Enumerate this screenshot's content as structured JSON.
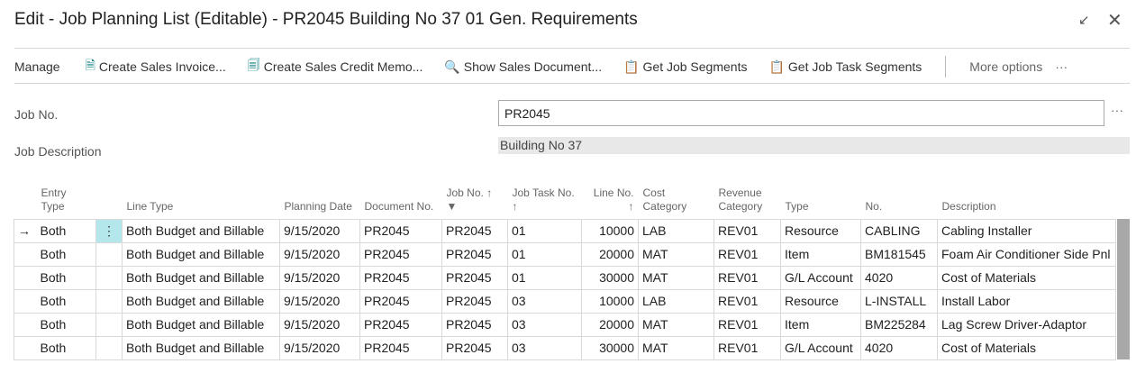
{
  "title": "Edit - Job Planning List (Editable) - PR2045 Building No 37 01 Gen. Requirements",
  "window": {
    "collapse_icon": "↙",
    "close_icon": "✕"
  },
  "toolbar": {
    "manage": "Manage",
    "actions": [
      {
        "label": "Create Sales Invoice...",
        "icon": "invoice-icon"
      },
      {
        "label": "Create Sales Credit Memo...",
        "icon": "credit-memo-icon"
      },
      {
        "label": "Show Sales Document...",
        "icon": "document-search-icon"
      },
      {
        "label": "Get Job Segments",
        "icon": "clipboard-icon"
      },
      {
        "label": "Get Job Task Segments",
        "icon": "clipboard-gear-icon"
      }
    ],
    "more": "More options",
    "more_dots": "···"
  },
  "header": {
    "job_no_label": "Job No.",
    "job_no": "PR2045",
    "job_no_dots": "···",
    "job_desc_label": "Job Description",
    "job_desc": "Building No 37"
  },
  "columns": [
    "Entry Type",
    "Line Type",
    "Planning Date",
    "Document No.",
    "Job No. ↑ ▼",
    "Job Task No. ↑",
    "Line No. ↑",
    "Cost Category",
    "Revenue Category",
    "Type",
    "No.",
    "Description"
  ],
  "rows": [
    [
      "Both",
      "Both Budget and Billable",
      "9/15/2020",
      "PR2045",
      "PR2045",
      "01",
      "10000",
      "LAB",
      "REV01",
      "Resource",
      "CABLING",
      "Cabling Installer"
    ],
    [
      "Both",
      "Both Budget and Billable",
      "9/15/2020",
      "PR2045",
      "PR2045",
      "01",
      "20000",
      "MAT",
      "REV01",
      "Item",
      "BM181545",
      "Foam Air Conditioner Side Pnl"
    ],
    [
      "Both",
      "Both Budget and Billable",
      "9/15/2020",
      "PR2045",
      "PR2045",
      "01",
      "30000",
      "MAT",
      "REV01",
      "G/L Account",
      "4020",
      "Cost of Materials"
    ],
    [
      "Both",
      "Both Budget and Billable",
      "9/15/2020",
      "PR2045",
      "PR2045",
      "03",
      "10000",
      "LAB",
      "REV01",
      "Resource",
      "L-INSTALL",
      "Install Labor"
    ],
    [
      "Both",
      "Both Budget and Billable",
      "9/15/2020",
      "PR2045",
      "PR2045",
      "03",
      "20000",
      "MAT",
      "REV01",
      "Item",
      "BM225284",
      "Lag Screw Driver-Adaptor"
    ],
    [
      "Both",
      "Both Budget and Billable",
      "9/15/2020",
      "PR2045",
      "PR2045",
      "03",
      "30000",
      "MAT",
      "REV01",
      "G/L Account",
      "4020",
      "Cost of Materials"
    ]
  ],
  "current_row_marker": "→",
  "row_menu": "⋮"
}
